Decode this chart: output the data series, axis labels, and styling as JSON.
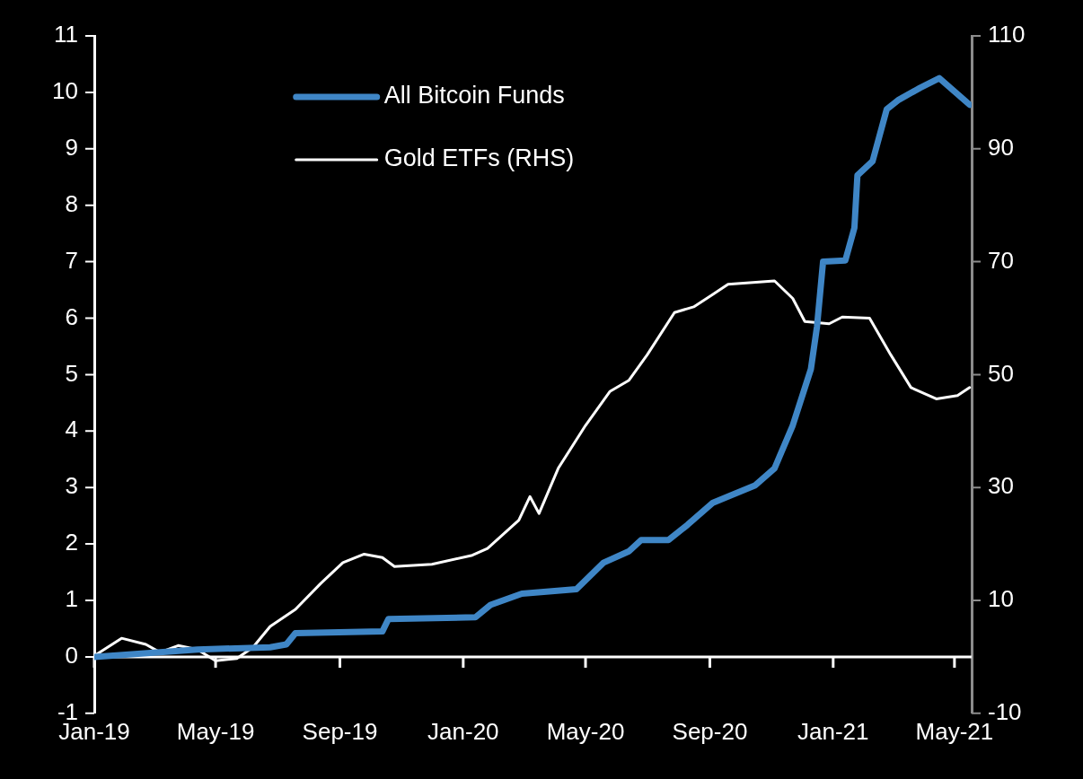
{
  "chart_data": {
    "type": "line",
    "xlim": [
      "2019-01-01",
      "2021-05-18"
    ],
    "xticks": [
      {
        "value": "2019-01-01",
        "label": "Jan-19"
      },
      {
        "value": "2019-05-01",
        "label": "May-19"
      },
      {
        "value": "2019-09-01",
        "label": "Sep-19"
      },
      {
        "value": "2020-01-01",
        "label": "Jan-20"
      },
      {
        "value": "2020-05-01",
        "label": "May-20"
      },
      {
        "value": "2020-09-01",
        "label": "Sep-20"
      },
      {
        "value": "2021-01-01",
        "label": "Jan-21"
      },
      {
        "value": "2021-05-01",
        "label": "May-21"
      }
    ],
    "ylim": [
      -1,
      11
    ],
    "yticks": [
      -1,
      0,
      1,
      2,
      3,
      4,
      5,
      6,
      7,
      8,
      9,
      10,
      11
    ],
    "y2lim": [
      -10,
      110
    ],
    "y2ticks": [
      -10,
      10,
      30,
      50,
      70,
      90,
      110
    ],
    "grid": false,
    "ref_lines": [
      {
        "axis": "y",
        "value": 0,
        "color": "#ffffff",
        "line_style": "solid"
      }
    ],
    "legend": "top left",
    "marker": "none",
    "line_style": "solid",
    "series": [
      {
        "name": "All Bitcoin Funds",
        "color": "#3f86c6",
        "x": [
          "2019-01-01",
          "2019-04-13",
          "2019-06-24",
          "2019-07-10",
          "2019-07-19",
          "2019-10-13",
          "2019-10-19",
          "2020-01-13",
          "2020-01-28",
          "2020-02-28",
          "2020-04-22",
          "2020-05-19",
          "2020-06-13",
          "2020-06-25",
          "2020-07-22",
          "2020-08-10",
          "2020-09-04",
          "2020-09-19",
          "2020-10-16",
          "2020-11-04",
          "2020-11-22",
          "2020-12-10",
          "2020-12-16",
          "2020-12-22",
          "2021-01-13",
          "2021-01-22",
          "2021-01-25",
          "2021-02-09",
          "2021-02-23",
          "2021-03-07",
          "2021-03-28",
          "2021-04-16",
          "2021-05-16"
        ],
        "values": [
          0,
          0.13,
          0.17,
          0.22,
          0.42,
          0.45,
          0.67,
          0.7,
          0.92,
          1.12,
          1.2,
          1.67,
          1.87,
          2.07,
          2.07,
          2.34,
          2.73,
          2.84,
          3.04,
          3.34,
          4.1,
          5.1,
          5.85,
          7.0,
          7.02,
          7.6,
          8.53,
          8.78,
          9.7,
          9.87,
          10.08,
          10.25,
          9.78
        ]
      },
      {
        "name": "Gold ETFs (RHS)",
        "color": "#ffffff",
        "axis": "y2",
        "x": [
          "2019-01-02",
          "2019-01-28",
          "2019-02-21",
          "2019-03-07",
          "2019-03-25",
          "2019-04-13",
          "2019-05-01",
          "2019-05-22",
          "2019-06-07",
          "2019-06-24",
          "2019-07-19",
          "2019-08-13",
          "2019-09-04",
          "2019-09-25",
          "2019-10-13",
          "2019-10-25",
          "2019-12-01",
          "2020-01-10",
          "2020-01-25",
          "2020-02-25",
          "2020-03-07",
          "2020-03-16",
          "2020-04-04",
          "2020-05-01",
          "2020-05-25",
          "2020-06-13",
          "2020-07-01",
          "2020-07-28",
          "2020-08-16",
          "2020-09-04",
          "2020-09-19",
          "2020-11-04",
          "2020-11-22",
          "2020-12-04",
          "2020-12-28",
          "2021-01-10",
          "2021-02-06",
          "2021-02-27",
          "2021-03-19",
          "2021-04-13",
          "2021-05-04",
          "2021-05-16"
        ],
        "values": [
          0.3,
          3.3,
          2.2,
          0.8,
          2.0,
          1.3,
          -0.7,
          -0.3,
          1.7,
          5.4,
          8.4,
          13,
          16.7,
          18.2,
          17.6,
          16,
          16.4,
          18,
          19.2,
          24.2,
          28.4,
          25.4,
          33.4,
          41,
          47,
          49,
          53.5,
          61,
          62,
          64.2,
          66,
          66.6,
          63.5,
          59.4,
          59,
          60.2,
          60,
          53.5,
          47.7,
          45.7,
          46.3,
          47.7
        ]
      }
    ]
  }
}
